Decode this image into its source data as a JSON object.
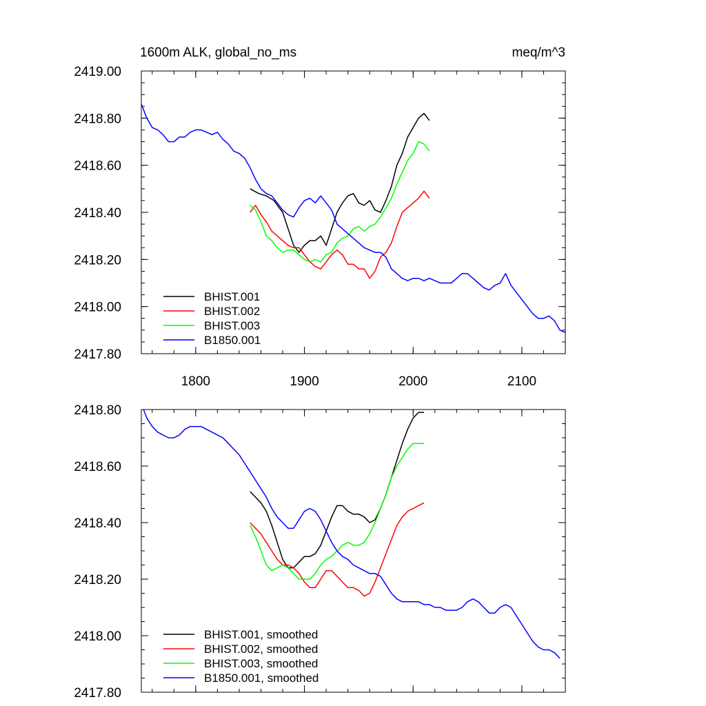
{
  "title_left": "1600m ALK, global_no_ms",
  "title_right": "meq/m^3",
  "chart_data": [
    {
      "type": "line",
      "xlabel": "",
      "ylabel": "",
      "xlim": [
        1750,
        2140
      ],
      "ylim": [
        2417.8,
        2419.0
      ],
      "xticks": [
        1800,
        1900,
        2000,
        2100
      ],
      "xtick_labels": [
        "1800",
        "1900",
        "2000",
        "2100"
      ],
      "yticks": [
        2417.8,
        2418.0,
        2418.2,
        2418.4,
        2418.6,
        2418.8,
        2419.0
      ],
      "ytick_labels": [
        "2417.80",
        "2418.00",
        "2418.20",
        "2418.40",
        "2418.60",
        "2418.80",
        "2419.00"
      ],
      "legend_position": "bottom-left",
      "series": [
        {
          "name": "BHIST.001",
          "color": "#000000",
          "x": [
            1850,
            1858,
            1865,
            1872,
            1880,
            1885,
            1890,
            1895,
            1900,
            1905,
            1910,
            1915,
            1920,
            1925,
            1930,
            1935,
            1940,
            1945,
            1950,
            1955,
            1960,
            1965,
            1970,
            1975,
            1980,
            1985,
            1990,
            1995,
            2000,
            2005,
            2010,
            2015
          ],
          "values": [
            2418.5,
            2418.48,
            2418.47,
            2418.45,
            2418.4,
            2418.33,
            2418.26,
            2418.23,
            2418.26,
            2418.28,
            2418.28,
            2418.3,
            2418.26,
            2418.33,
            2418.4,
            2418.44,
            2418.47,
            2418.48,
            2418.44,
            2418.43,
            2418.45,
            2418.41,
            2418.4,
            2418.45,
            2418.51,
            2418.6,
            2418.65,
            2418.72,
            2418.76,
            2418.8,
            2418.82,
            2418.79
          ]
        },
        {
          "name": "BHIST.002",
          "color": "#ff0000",
          "x": [
            1850,
            1855,
            1860,
            1865,
            1870,
            1875,
            1880,
            1885,
            1890,
            1895,
            1900,
            1905,
            1910,
            1915,
            1920,
            1925,
            1930,
            1935,
            1940,
            1945,
            1950,
            1955,
            1960,
            1965,
            1970,
            1975,
            1980,
            1985,
            1990,
            1995,
            2000,
            2005,
            2010,
            2015
          ],
          "values": [
            2418.4,
            2418.43,
            2418.39,
            2418.36,
            2418.32,
            2418.3,
            2418.28,
            2418.26,
            2418.25,
            2418.25,
            2418.22,
            2418.19,
            2418.17,
            2418.16,
            2418.19,
            2418.22,
            2418.24,
            2418.22,
            2418.18,
            2418.18,
            2418.16,
            2418.16,
            2418.12,
            2418.15,
            2418.21,
            2418.23,
            2418.27,
            2418.34,
            2418.4,
            2418.42,
            2418.44,
            2418.46,
            2418.49,
            2418.46
          ]
        },
        {
          "name": "BHIST.003",
          "color": "#00ff00",
          "x": [
            1850,
            1855,
            1860,
            1865,
            1870,
            1875,
            1880,
            1885,
            1890,
            1895,
            1900,
            1905,
            1910,
            1915,
            1920,
            1925,
            1930,
            1935,
            1940,
            1945,
            1950,
            1955,
            1960,
            1965,
            1970,
            1975,
            1980,
            1985,
            1990,
            1995,
            2000,
            2005,
            2010,
            2015
          ],
          "values": [
            2418.43,
            2418.41,
            2418.36,
            2418.3,
            2418.28,
            2418.25,
            2418.23,
            2418.24,
            2418.24,
            2418.22,
            2418.2,
            2418.19,
            2418.2,
            2418.19,
            2418.22,
            2418.23,
            2418.27,
            2418.29,
            2418.3,
            2418.33,
            2418.34,
            2418.32,
            2418.34,
            2418.35,
            2418.38,
            2418.42,
            2418.46,
            2418.52,
            2418.57,
            2418.62,
            2418.65,
            2418.7,
            2418.69,
            2418.66
          ]
        },
        {
          "name": "B1850.001",
          "color": "#0000ff",
          "x": [
            1750,
            1755,
            1760,
            1765,
            1770,
            1775,
            1780,
            1785,
            1790,
            1795,
            1800,
            1805,
            1810,
            1815,
            1820,
            1825,
            1830,
            1835,
            1840,
            1845,
            1850,
            1855,
            1860,
            1865,
            1870,
            1875,
            1880,
            1885,
            1890,
            1895,
            1900,
            1905,
            1910,
            1915,
            1920,
            1925,
            1930,
            1935,
            1940,
            1945,
            1950,
            1955,
            1960,
            1965,
            1970,
            1975,
            1980,
            1985,
            1990,
            1995,
            2000,
            2005,
            2010,
            2015,
            2020,
            2025,
            2030,
            2035,
            2040,
            2045,
            2050,
            2055,
            2060,
            2065,
            2070,
            2075,
            2080,
            2085,
            2090,
            2095,
            2100,
            2105,
            2110,
            2115,
            2120,
            2125,
            2130,
            2135,
            2140
          ],
          "values": [
            2418.86,
            2418.8,
            2418.76,
            2418.75,
            2418.73,
            2418.7,
            2418.7,
            2418.72,
            2418.72,
            2418.74,
            2418.75,
            2418.75,
            2418.74,
            2418.73,
            2418.74,
            2418.71,
            2418.69,
            2418.66,
            2418.65,
            2418.63,
            2418.59,
            2418.54,
            2418.5,
            2418.48,
            2418.47,
            2418.44,
            2418.41,
            2418.39,
            2418.38,
            2418.42,
            2418.45,
            2418.46,
            2418.44,
            2418.47,
            2418.44,
            2418.41,
            2418.35,
            2418.33,
            2418.31,
            2418.29,
            2418.27,
            2418.25,
            2418.24,
            2418.23,
            2418.23,
            2418.21,
            2418.16,
            2418.14,
            2418.12,
            2418.11,
            2418.12,
            2418.12,
            2418.11,
            2418.12,
            2418.11,
            2418.1,
            2418.1,
            2418.1,
            2418.12,
            2418.14,
            2418.14,
            2418.12,
            2418.1,
            2418.08,
            2418.07,
            2418.09,
            2418.1,
            2418.14,
            2418.09,
            2418.06,
            2418.03,
            2418.0,
            2417.97,
            2417.95,
            2417.95,
            2417.96,
            2417.94,
            2417.9,
            2417.89
          ]
        }
      ]
    },
    {
      "type": "line",
      "xlabel": "",
      "ylabel": "",
      "xlim": [
        1750,
        2140
      ],
      "ylim": [
        2417.8,
        2418.8
      ],
      "xticks": [
        1800,
        1900,
        2000,
        2100
      ],
      "yticks": [
        2417.8,
        2418.0,
        2418.2,
        2418.4,
        2418.6,
        2418.8
      ],
      "ytick_labels": [
        "2417.80",
        "2418.00",
        "2418.20",
        "2418.40",
        "2418.60",
        "2418.80"
      ],
      "legend_position": "bottom-left",
      "series": [
        {
          "name": "BHIST.001, smoothed",
          "color": "#000000",
          "x": [
            1850,
            1855,
            1860,
            1865,
            1870,
            1875,
            1880,
            1885,
            1890,
            1895,
            1900,
            1905,
            1910,
            1915,
            1920,
            1925,
            1930,
            1935,
            1940,
            1945,
            1950,
            1955,
            1960,
            1965,
            1970,
            1975,
            1980,
            1985,
            1990,
            1995,
            2000,
            2005,
            2010
          ],
          "values": [
            2418.51,
            2418.49,
            2418.47,
            2418.44,
            2418.39,
            2418.33,
            2418.27,
            2418.24,
            2418.24,
            2418.26,
            2418.28,
            2418.28,
            2418.29,
            2418.32,
            2418.37,
            2418.42,
            2418.46,
            2418.46,
            2418.44,
            2418.43,
            2418.43,
            2418.42,
            2418.4,
            2418.41,
            2418.45,
            2418.5,
            2418.56,
            2418.62,
            2418.68,
            2418.73,
            2418.77,
            2418.79,
            2418.79
          ]
        },
        {
          "name": "BHIST.002, smoothed",
          "color": "#ff0000",
          "x": [
            1850,
            1855,
            1860,
            1865,
            1870,
            1875,
            1880,
            1885,
            1890,
            1895,
            1900,
            1905,
            1910,
            1915,
            1920,
            1925,
            1930,
            1935,
            1940,
            1945,
            1950,
            1955,
            1960,
            1965,
            1970,
            1975,
            1980,
            1985,
            1990,
            1995,
            2000,
            2005,
            2010
          ],
          "values": [
            2418.4,
            2418.38,
            2418.36,
            2418.33,
            2418.3,
            2418.27,
            2418.25,
            2418.25,
            2418.24,
            2418.22,
            2418.19,
            2418.17,
            2418.17,
            2418.2,
            2418.23,
            2418.23,
            2418.21,
            2418.19,
            2418.17,
            2418.17,
            2418.16,
            2418.14,
            2418.15,
            2418.19,
            2418.24,
            2418.29,
            2418.34,
            2418.39,
            2418.42,
            2418.44,
            2418.45,
            2418.46,
            2418.47
          ]
        },
        {
          "name": "BHIST.003, smoothed",
          "color": "#00ff00",
          "x": [
            1850,
            1855,
            1860,
            1865,
            1870,
            1875,
            1880,
            1885,
            1890,
            1895,
            1900,
            1905,
            1910,
            1915,
            1920,
            1925,
            1930,
            1935,
            1940,
            1945,
            1950,
            1955,
            1960,
            1965,
            1970,
            1975,
            1980,
            1985,
            1990,
            1995,
            2000,
            2005,
            2010
          ],
          "values": [
            2418.39,
            2418.35,
            2418.3,
            2418.25,
            2418.23,
            2418.24,
            2418.25,
            2418.24,
            2418.22,
            2418.2,
            2418.2,
            2418.2,
            2418.22,
            2418.25,
            2418.27,
            2418.28,
            2418.3,
            2418.32,
            2418.33,
            2418.32,
            2418.32,
            2418.33,
            2418.36,
            2418.4,
            2418.45,
            2418.5,
            2418.56,
            2418.6,
            2418.63,
            2418.66,
            2418.68,
            2418.68,
            2418.68
          ]
        },
        {
          "name": "B1850.001, smoothed",
          "color": "#0000ff",
          "x": [
            1752,
            1755,
            1760,
            1765,
            1770,
            1775,
            1780,
            1785,
            1790,
            1795,
            1800,
            1805,
            1810,
            1815,
            1820,
            1825,
            1830,
            1835,
            1840,
            1845,
            1850,
            1855,
            1860,
            1865,
            1870,
            1875,
            1880,
            1885,
            1890,
            1895,
            1900,
            1905,
            1910,
            1915,
            1920,
            1925,
            1930,
            1935,
            1940,
            1945,
            1950,
            1955,
            1960,
            1965,
            1970,
            1975,
            1980,
            1985,
            1990,
            1995,
            2000,
            2005,
            2010,
            2015,
            2020,
            2025,
            2030,
            2035,
            2040,
            2045,
            2050,
            2055,
            2060,
            2065,
            2070,
            2075,
            2080,
            2085,
            2090,
            2095,
            2100,
            2105,
            2110,
            2115,
            2120,
            2125,
            2130,
            2135
          ],
          "values": [
            2418.8,
            2418.77,
            2418.74,
            2418.72,
            2418.71,
            2418.7,
            2418.7,
            2418.71,
            2418.73,
            2418.74,
            2418.74,
            2418.74,
            2418.73,
            2418.72,
            2418.71,
            2418.7,
            2418.68,
            2418.66,
            2418.64,
            2418.61,
            2418.58,
            2418.55,
            2418.52,
            2418.49,
            2418.45,
            2418.42,
            2418.4,
            2418.38,
            2418.38,
            2418.41,
            2418.44,
            2418.45,
            2418.44,
            2418.41,
            2418.37,
            2418.33,
            2418.3,
            2418.28,
            2418.27,
            2418.25,
            2418.24,
            2418.23,
            2418.22,
            2418.22,
            2418.21,
            2418.18,
            2418.15,
            2418.13,
            2418.12,
            2418.12,
            2418.12,
            2418.12,
            2418.11,
            2418.11,
            2418.1,
            2418.1,
            2418.09,
            2418.09,
            2418.09,
            2418.1,
            2418.12,
            2418.13,
            2418.12,
            2418.1,
            2418.08,
            2418.08,
            2418.1,
            2418.11,
            2418.1,
            2418.07,
            2418.04,
            2418.01,
            2417.98,
            2417.96,
            2417.95,
            2417.95,
            2417.94,
            2417.92
          ]
        }
      ]
    }
  ]
}
